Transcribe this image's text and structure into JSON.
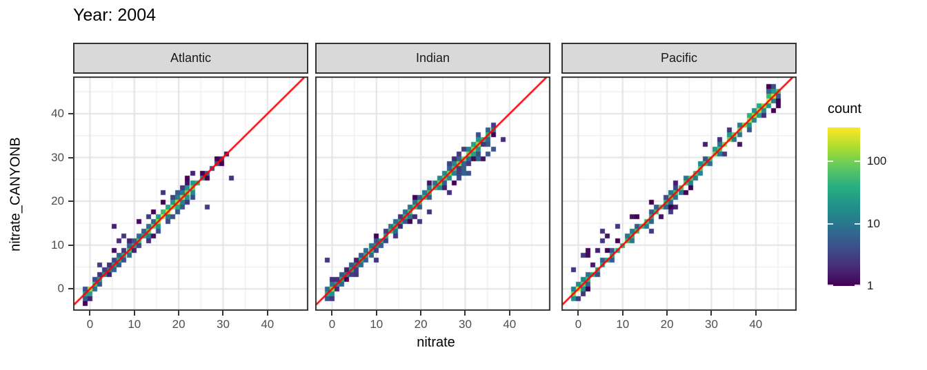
{
  "title": "Year: 2004",
  "chart_data": {
    "type": "heatmap",
    "subtype": "2d-binned scatter density (geom_bin2d), faceted by ocean",
    "title": "Year: 2004",
    "xlabel": "nitrate",
    "ylabel": "nitrate_CANYONB",
    "x_ticks": [
      "0",
      "10",
      "20",
      "30",
      "40"
    ],
    "y_ticks": [
      "0",
      "10",
      "20",
      "30",
      "40"
    ],
    "x_tick_values": [
      0,
      10,
      20,
      30,
      40
    ],
    "y_tick_values": [
      0,
      10,
      20,
      30,
      40
    ],
    "x_range": [
      -3.8,
      49.2
    ],
    "y_range": [
      -5,
      48.5
    ],
    "grid": {
      "major": [
        0,
        10,
        20,
        30,
        40
      ],
      "minor": [
        5,
        15,
        25,
        35,
        45
      ],
      "major_color": "#e3e3e3",
      "minor_color": "#f0f0f0"
    },
    "bin_size": 1.1,
    "abline": {
      "slope": 1,
      "intercept": 0,
      "color": "#FF0000"
    },
    "panel": {
      "background": "#ffffff",
      "border_color": "#333333",
      "strip_fill": "#d9d9d9"
    },
    "legend": {
      "title": "count",
      "scale": "log10",
      "tick_labels": [
        "100",
        "10",
        "1"
      ],
      "tick_values": [
        100,
        10,
        1
      ],
      "max_count": 350,
      "viridis": [
        "#440154",
        "#472d7b",
        "#3b528b",
        "#2c728e",
        "#21918c",
        "#28ae80",
        "#5ec962",
        "#addc30",
        "#fde725"
      ]
    },
    "facets": [
      {
        "name": "Atlantic",
        "seed": 11,
        "band": {
          "t_min": -1.2,
          "t_max": 30.8,
          "spread": 1.0,
          "profile": [
            [
              -1.2,
              25
            ],
            [
              0,
              170
            ],
            [
              1,
              60
            ],
            [
              2,
              30
            ],
            [
              3,
              22
            ],
            [
              4,
              18
            ],
            [
              5,
              22
            ],
            [
              6,
              25
            ],
            [
              7,
              30
            ],
            [
              8,
              35
            ],
            [
              9,
              40
            ],
            [
              10,
              45
            ],
            [
              11,
              50
            ],
            [
              12,
              55
            ],
            [
              13,
              70
            ],
            [
              14,
              90
            ],
            [
              15,
              120
            ],
            [
              16,
              180
            ],
            [
              17,
              230
            ],
            [
              18,
              230
            ],
            [
              19,
              180
            ],
            [
              20,
              150
            ],
            [
              21,
              120
            ],
            [
              22,
              100
            ],
            [
              23,
              80
            ],
            [
              24,
              50
            ],
            [
              25,
              25
            ],
            [
              26,
              12
            ],
            [
              27,
              8
            ],
            [
              28,
              5
            ],
            [
              29,
              3
            ],
            [
              30,
              2
            ],
            [
              30.8,
              1
            ]
          ]
        },
        "outliers": [
          [
            5.2,
            13.9
          ],
          [
            7.6,
            12.3
          ],
          [
            8.9,
            11.3
          ],
          [
            5.2,
            8.9
          ],
          [
            6.4,
            10.6
          ],
          [
            31.4,
            25.2
          ],
          [
            11,
            15.6
          ],
          [
            13.2,
            16.8
          ],
          [
            2.1,
            5.4
          ],
          [
            14.1,
            11.9
          ],
          [
            25.9,
            18.4
          ],
          [
            23.4,
            26.9
          ],
          [
            16.5,
            21.5
          ]
        ]
      },
      {
        "name": "Indian",
        "seed": 7,
        "band": {
          "t_min": -0.8,
          "t_max": 37.5,
          "spread": 1.1,
          "profile": [
            [
              -0.8,
              60
            ],
            [
              0,
              130
            ],
            [
              1,
              40
            ],
            [
              2,
              25
            ],
            [
              3,
              20
            ],
            [
              4,
              18
            ],
            [
              5,
              20
            ],
            [
              6,
              22
            ],
            [
              7,
              25
            ],
            [
              8,
              28
            ],
            [
              10,
              32
            ],
            [
              12,
              36
            ],
            [
              14,
              40
            ],
            [
              16,
              45
            ],
            [
              18,
              50
            ],
            [
              20,
              55
            ],
            [
              22,
              60
            ],
            [
              24,
              65
            ],
            [
              26,
              70
            ],
            [
              28,
              80
            ],
            [
              30,
              110
            ],
            [
              31,
              150
            ],
            [
              32,
              200
            ],
            [
              33,
              140
            ],
            [
              34,
              80
            ],
            [
              35,
              50
            ],
            [
              36,
              25
            ],
            [
              37,
              8
            ],
            [
              37.5,
              3
            ]
          ]
        },
        "blob": {
          "x0": 27,
          "x1": 36.5,
          "dy0": -4.4,
          "dy1": 1.2,
          "p": 0.45,
          "max": 7
        },
        "outliers": [
          [
            -1,
            6.5
          ],
          [
            39,
            34.3
          ],
          [
            14.6,
            11.6
          ],
          [
            22.1,
            17.6
          ],
          [
            9.5,
            6.9
          ],
          [
            26,
            21.5
          ],
          [
            5.4,
            2.9
          ],
          [
            20,
            15.8
          ]
        ]
      },
      {
        "name": "Pacific",
        "seed": 3,
        "band": {
          "t_min": -0.8,
          "t_max": 46.5,
          "spread": 0.75,
          "profile": [
            [
              -0.8,
              80
            ],
            [
              0,
              330
            ],
            [
              1,
              80
            ],
            [
              2,
              45
            ],
            [
              3,
              35
            ],
            [
              4,
              30
            ],
            [
              5,
              28
            ],
            [
              6,
              30
            ],
            [
              7,
              32
            ],
            [
              8,
              35
            ],
            [
              10,
              40
            ],
            [
              12,
              45
            ],
            [
              14,
              50
            ],
            [
              16,
              55
            ],
            [
              18,
              60
            ],
            [
              20,
              65
            ],
            [
              22,
              60
            ],
            [
              24,
              55
            ],
            [
              26,
              60
            ],
            [
              28,
              70
            ],
            [
              30,
              80
            ],
            [
              32,
              90
            ],
            [
              34,
              100
            ],
            [
              36,
              110
            ],
            [
              38,
              130
            ],
            [
              40,
              160
            ],
            [
              42,
              200
            ],
            [
              43,
              260
            ],
            [
              44,
              220
            ],
            [
              45,
              120
            ],
            [
              46,
              40
            ],
            [
              46.5,
              10
            ]
          ]
        },
        "outliers": [
          [
            0.9,
            7.3
          ],
          [
            1.9,
            7.3
          ],
          [
            6,
            13
          ],
          [
            7,
            12.2
          ],
          [
            8.8,
            14
          ],
          [
            12,
            16
          ],
          [
            2.5,
            8.3
          ],
          [
            20.8,
            17.8
          ],
          [
            21.9,
            18.4
          ],
          [
            28.7,
            32.7
          ],
          [
            5.2,
            10.8
          ],
          [
            16,
            12.9
          ],
          [
            33,
            30.5
          ],
          [
            3.9,
            9.2
          ],
          [
            -1.5,
            4
          ],
          [
            0.2,
            -2
          ],
          [
            36,
            32.5
          ],
          [
            2.8,
            5.9
          ]
        ]
      }
    ]
  }
}
